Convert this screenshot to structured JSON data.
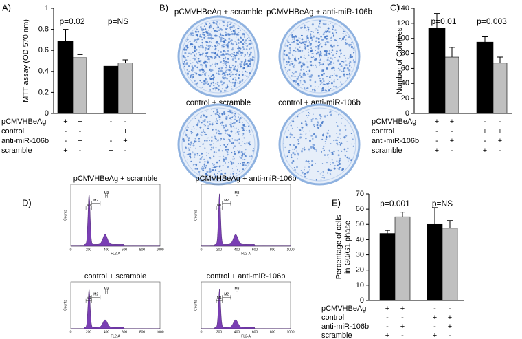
{
  "chart_data": [
    {
      "type": "bar",
      "panel_label": "A)",
      "ylabel": [
        "MTT assay (OD 570 nm)"
      ],
      "values": [
        0.69,
        0.53,
        0.45,
        0.48
      ],
      "errors": [
        0.11,
        0.03,
        0.03,
        0.03
      ],
      "colors": [
        "#000000",
        "#c0c0c0",
        "#000000",
        "#c0c0c0"
      ],
      "ylim": [
        0,
        1
      ],
      "yticks": [
        0,
        0.2,
        0.4,
        0.6,
        0.8,
        1
      ],
      "annotations": [
        "p=0.02",
        "p=NS"
      ],
      "conditions": [
        {
          "name": "pCMVHBeAg",
          "marks": [
            "+",
            "+",
            "-",
            "-"
          ]
        },
        {
          "name": "control",
          "marks": [
            "-",
            "-",
            "+",
            "+"
          ]
        },
        {
          "name": "anti-miR-106b",
          "marks": [
            "-",
            "+",
            "-",
            "+"
          ]
        },
        {
          "name": "scramble",
          "marks": [
            "+",
            "-",
            "+",
            "-"
          ]
        }
      ]
    },
    {
      "type": "bar",
      "panel_label": "C)",
      "ylabel": [
        "Number of Colonies"
      ],
      "values": [
        114,
        75,
        95,
        67
      ],
      "errors": [
        19,
        13,
        7,
        8
      ],
      "colors": [
        "#000000",
        "#c0c0c0",
        "#000000",
        "#c0c0c0"
      ],
      "ylim": [
        0,
        140
      ],
      "yticks": [
        0,
        20,
        40,
        60,
        80,
        100,
        120,
        140
      ],
      "annotations": [
        "p=0.01",
        "p=0.003"
      ],
      "conditions": [
        {
          "name": "pCMVHBeAg",
          "marks": [
            "+",
            "+",
            "-",
            "-"
          ]
        },
        {
          "name": "control",
          "marks": [
            "-",
            "-",
            "+",
            "+"
          ]
        },
        {
          "name": "anti-miR-106b",
          "marks": [
            "-",
            "+",
            "-",
            "+"
          ]
        },
        {
          "name": "scramble",
          "marks": [
            "+",
            "-",
            "+",
            "-"
          ]
        }
      ]
    },
    {
      "type": "bar",
      "panel_label": "E)",
      "ylabel": [
        "Percentage of cells",
        "in G0/G1 phase"
      ],
      "values": [
        44,
        55,
        50,
        47.5
      ],
      "errors": [
        2,
        3,
        11,
        5
      ],
      "colors": [
        "#000000",
        "#c0c0c0",
        "#000000",
        "#c0c0c0"
      ],
      "ylim": [
        0,
        70
      ],
      "yticks": [
        0,
        10,
        20,
        30,
        40,
        50,
        60,
        70
      ],
      "annotations": [
        "p=0.001",
        "p=NS"
      ],
      "conditions": [
        {
          "name": "pCMVHBeAg",
          "marks": [
            "+",
            "+",
            "-",
            "-"
          ]
        },
        {
          "name": "control",
          "marks": [
            "-",
            "-",
            "+",
            "+"
          ]
        },
        {
          "name": "anti-miR-106b",
          "marks": [
            "-",
            "+",
            "-",
            "+"
          ]
        },
        {
          "name": "scramble",
          "marks": [
            "+",
            "-",
            "+",
            "-"
          ]
        }
      ]
    }
  ],
  "plates": {
    "panel_label": "B)",
    "labels": [
      "pCMVHBeAg + scramble",
      "pCMVHBeAg + anti-miR-106b",
      "control + scramble",
      "control + anti-miR-106b"
    ]
  },
  "histograms": {
    "panel_label": "D)",
    "titles": [
      "pCMVHBeAg + scramble",
      "pCMVHBeAg + anti-miR-106b",
      "control + scramble",
      "control + anti-miR-106b"
    ],
    "x_label": "FL2-A",
    "y_label": "Counts",
    "xticks": [
      "0",
      "200",
      "400",
      "600",
      "800",
      "1000"
    ],
    "markers": [
      "M1",
      "M2",
      "M3"
    ]
  }
}
